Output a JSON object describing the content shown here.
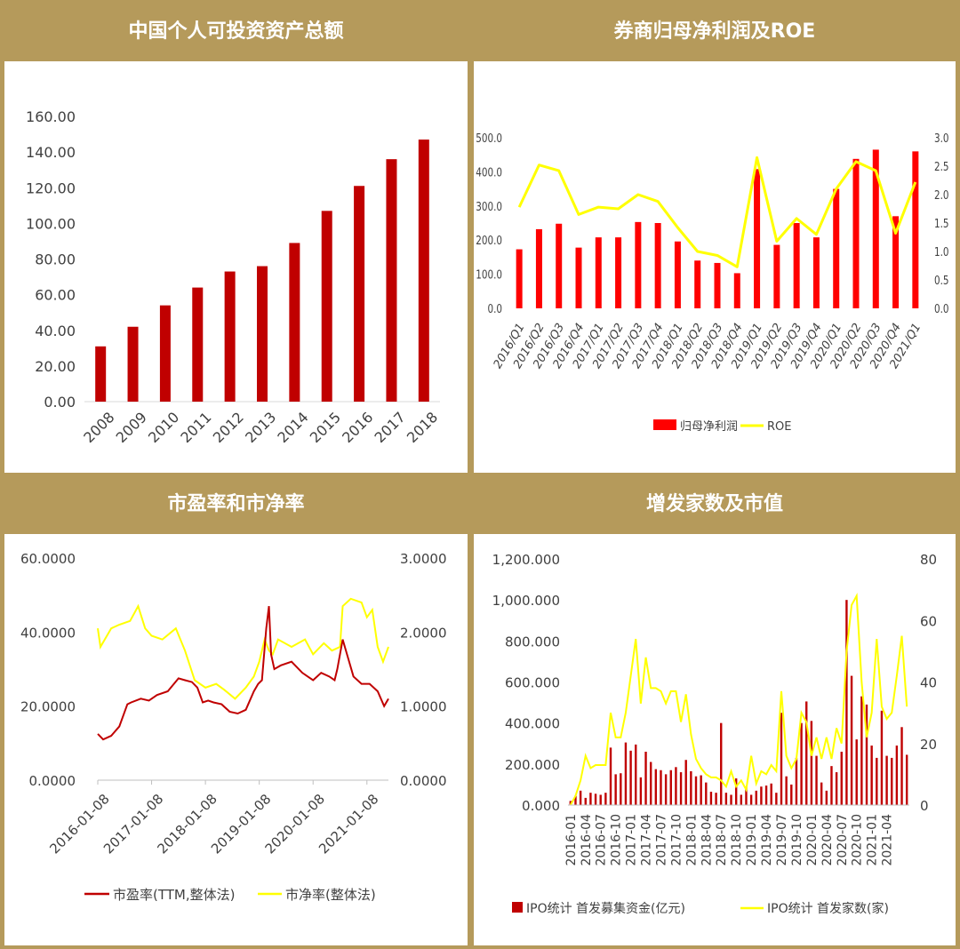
{
  "panels": [
    {
      "title": "中国个人可投资资产总额"
    },
    {
      "title": "券商归母净利润及ROE"
    },
    {
      "title": "市盈率和市净率"
    },
    {
      "title": "增发家数及市值"
    }
  ],
  "chart_data": [
    {
      "type": "bar",
      "title": "中国个人可投资资产总额",
      "categories": [
        "2008",
        "2009",
        "2010",
        "2011",
        "2012",
        "2013",
        "2014",
        "2015",
        "2016",
        "2017",
        "2018"
      ],
      "values": [
        31,
        42,
        54,
        64,
        73,
        76,
        89,
        107,
        121,
        136,
        147
      ],
      "ylim": [
        0,
        160
      ],
      "yticks": [
        "0.00",
        "20.00",
        "40.00",
        "60.00",
        "80.00",
        "100.00",
        "120.00",
        "140.00",
        "160.00"
      ],
      "colors": {
        "bar": "#c00000"
      }
    },
    {
      "type": "bar+line",
      "title": "券商归母净利润及ROE",
      "categories": [
        "2016/Q1",
        "2016/Q2",
        "2016/Q3",
        "2016/Q4",
        "2017/Q1",
        "2017/Q2",
        "2017/Q3",
        "2017/Q4",
        "2018/Q1",
        "2018/Q2",
        "2018/Q3",
        "2018/Q4",
        "2019/Q1",
        "2019/Q2",
        "2019/Q3",
        "2019/Q4",
        "2020/Q1",
        "2020/Q2",
        "2020/Q3",
        "2020/Q4",
        "2021/Q1"
      ],
      "series": [
        {
          "name": "归母净利润",
          "type": "bar",
          "axis": "left",
          "values": [
            173,
            232,
            248,
            178,
            208,
            208,
            253,
            250,
            196,
            140,
            133,
            103,
            408,
            186,
            250,
            208,
            350,
            438,
            465,
            270,
            460
          ]
        },
        {
          "name": "ROE",
          "type": "line",
          "axis": "right",
          "values": [
            1.78,
            2.52,
            2.42,
            1.65,
            1.78,
            1.75,
            2.0,
            1.88,
            1.42,
            1.0,
            0.93,
            0.73,
            2.65,
            1.18,
            1.58,
            1.3,
            2.1,
            2.58,
            2.42,
            1.32,
            2.22
          ]
        }
      ],
      "ylim_left": [
        0,
        500
      ],
      "ylim_right": [
        0,
        3
      ],
      "yticks_left": [
        "0.0",
        "100.0",
        "200.0",
        "300.0",
        "400.0",
        "500.0"
      ],
      "yticks_right": [
        "0.0",
        "0.5",
        "1.0",
        "1.5",
        "2.0",
        "2.5",
        "3.0"
      ],
      "legend": [
        "归母净利润",
        "ROE"
      ],
      "colors": {
        "bar": "#ff0000",
        "line": "#ffff00"
      }
    },
    {
      "type": "line",
      "title": "市盈率和市净率",
      "x_ticks": [
        "2016-01-08",
        "2017-01-08",
        "2018-01-08",
        "2019-01-08",
        "2020-01-08",
        "2021-01-08"
      ],
      "x_range": [
        2016.0,
        2021.4
      ],
      "series": [
        {
          "name": "市盈率(TTM,整体法)",
          "axis": "left",
          "x": [
            2016.0,
            2016.1,
            2016.25,
            2016.4,
            2016.55,
            2016.62,
            2016.8,
            2016.95,
            2017.1,
            2017.3,
            2017.5,
            2017.62,
            2017.75,
            2017.85,
            2017.95,
            2018.05,
            2018.15,
            2018.3,
            2018.45,
            2018.6,
            2018.75,
            2018.9,
            2018.98,
            2019.05,
            2019.13,
            2019.18,
            2019.22,
            2019.28,
            2019.4,
            2019.6,
            2019.8,
            2020.0,
            2020.15,
            2020.3,
            2020.4,
            2020.45,
            2020.55,
            2020.65,
            2020.75,
            2020.9,
            2021.05,
            2021.2,
            2021.32,
            2021.4
          ],
          "values": [
            12.5,
            11,
            12,
            14.5,
            20.5,
            21,
            22,
            21.5,
            23,
            24,
            27.5,
            27,
            26.5,
            25,
            21,
            21.5,
            21,
            20.5,
            18.5,
            18,
            19,
            24,
            26,
            27,
            41,
            47,
            34,
            30,
            31,
            32,
            29,
            27,
            29,
            28,
            27,
            30,
            38,
            33,
            28,
            26,
            26,
            24,
            20,
            22
          ]
        },
        {
          "name": "市净率(整体法)",
          "axis": "right",
          "x": [
            2016.0,
            2016.05,
            2016.25,
            2016.4,
            2016.6,
            2016.75,
            2016.88,
            2017.0,
            2017.2,
            2017.45,
            2017.62,
            2017.8,
            2018.0,
            2018.2,
            2018.35,
            2018.55,
            2018.75,
            2018.9,
            2019.0,
            2019.1,
            2019.18,
            2019.25,
            2019.35,
            2019.6,
            2019.85,
            2020.0,
            2020.2,
            2020.35,
            2020.5,
            2020.55,
            2020.7,
            2020.9,
            2021.0,
            2021.1,
            2021.2,
            2021.3,
            2021.4
          ],
          "values": [
            2.05,
            1.8,
            2.05,
            2.1,
            2.15,
            2.35,
            2.05,
            1.95,
            1.9,
            2.05,
            1.75,
            1.35,
            1.25,
            1.3,
            1.22,
            1.1,
            1.25,
            1.4,
            1.6,
            1.9,
            1.75,
            1.7,
            1.9,
            1.8,
            1.9,
            1.7,
            1.85,
            1.75,
            1.8,
            2.35,
            2.45,
            2.4,
            2.2,
            2.3,
            1.8,
            1.6,
            1.8
          ]
        }
      ],
      "ylim_left": [
        0,
        60
      ],
      "ylim_right": [
        0,
        3
      ],
      "yticks_left": [
        "0.0000",
        "20.0000",
        "40.0000",
        "60.0000"
      ],
      "yticks_right": [
        "0.0000",
        "1.0000",
        "2.0000",
        "3.0000"
      ],
      "legend": [
        "市盈率(TTM,整体法)",
        "市净率(整体法)"
      ],
      "colors": {
        "pe": "#c00000",
        "pb": "#ffff00"
      }
    },
    {
      "type": "bar+line",
      "title": "增发家数及市值",
      "x_ticks": [
        "2016-01",
        "2016-04",
        "2016-07",
        "2016-10",
        "2017-01",
        "2017-04",
        "2017-07",
        "2017-10",
        "2018-01",
        "2018-04",
        "2018-07",
        "2018-10",
        "2019-01",
        "2019-04",
        "2019-07",
        "2019-10",
        "2020-01",
        "2020-04",
        "2020-07",
        "2020-10",
        "2021-01",
        "2021-04"
      ],
      "bars_per_tick": 2,
      "series": [
        {
          "name": "IPO统计 首发募集资金(亿元)",
          "type": "bar",
          "axis": "left",
          "values": [
            20,
            45,
            70,
            35,
            60,
            55,
            50,
            60,
            280,
            150,
            155,
            305,
            265,
            295,
            135,
            260,
            210,
            175,
            170,
            150,
            170,
            185,
            160,
            220,
            165,
            140,
            145,
            110,
            65,
            60,
            400,
            60,
            50,
            130,
            50,
            90,
            50,
            70,
            90,
            95,
            105,
            60,
            450,
            140,
            100,
            230,
            400,
            505,
            410,
            240,
            110,
            70,
            190,
            160,
            260,
            1000,
            630,
            320,
            530,
            490,
            290,
            230,
            460,
            240,
            230,
            290,
            380,
            245
          ],
          "ylim": [
            0,
            1200
          ]
        },
        {
          "name": "IPO统计 首发家数(家)",
          "type": "line",
          "axis": "right",
          "values": [
            0,
            3,
            8,
            16,
            12,
            13,
            13,
            13,
            30,
            22,
            22,
            30,
            42,
            54,
            33,
            48,
            38,
            38,
            37,
            33,
            37,
            37,
            27,
            36,
            23,
            15,
            12,
            10,
            9,
            9,
            8,
            6,
            11,
            6,
            8,
            5,
            16,
            7,
            11,
            10,
            13,
            11,
            37,
            16,
            12,
            15,
            30,
            27,
            16,
            22,
            15,
            22,
            15,
            25,
            20,
            50,
            65,
            68,
            40,
            22,
            30,
            54,
            32,
            28,
            30,
            42,
            55,
            32
          ],
          "ylim": [
            0,
            80
          ]
        }
      ],
      "ylim_left": [
        0,
        1200
      ],
      "ylim_right": [
        0,
        80
      ],
      "yticks_left": [
        "0.000",
        "200.000",
        "400.000",
        "600.000",
        "800.000",
        "1,000.000",
        "1,200.000"
      ],
      "yticks_right": [
        "0",
        "20",
        "40",
        "60",
        "80"
      ],
      "legend": [
        "IPO统计 首发募集资金(亿元)",
        "IPO统计 首发家数(家)"
      ],
      "colors": {
        "bar": "#c00000",
        "line": "#ffff00"
      }
    }
  ],
  "colors": {
    "header_bg": "#b59a5b",
    "border": "#b59a5b",
    "axis_text": "#404040"
  }
}
